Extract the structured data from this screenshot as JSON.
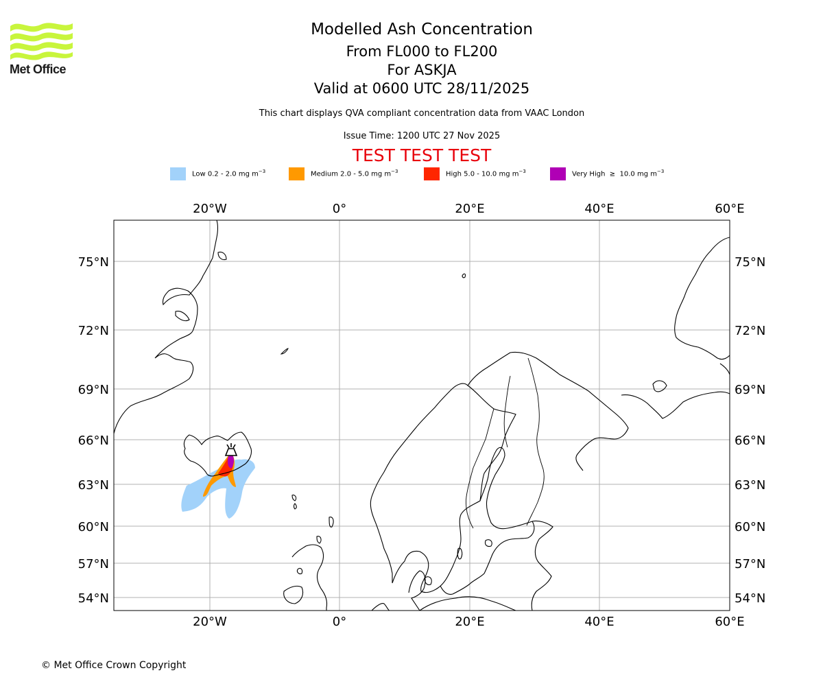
{
  "logo": {
    "text": "Met Office",
    "color": "#c8f53c"
  },
  "title": {
    "main": "Modelled Ash Concentration",
    "levels": "From FL000 to FL200",
    "volcano": "For ASKJA",
    "valid": "Valid at 0600 UTC 28/11/2025",
    "note": "This chart displays QVA compliant concentration data from VAAC London",
    "issue": "Issue Time: 1200 UTC 27 Nov 2025",
    "test": "TEST TEST TEST",
    "test_color": "#e8000b"
  },
  "legend": [
    {
      "label": "Low 0.2 - 2.0 mg m",
      "color": "#a2d2fa"
    },
    {
      "label": "Medium 2.0 - 5.0 mg m",
      "color": "#ff9900"
    },
    {
      "label": "High 5.0 - 10.0 mg m",
      "color": "#ff2600"
    },
    {
      "label": "Very High  ≥  10.0 mg m",
      "color": "#b000b5"
    }
  ],
  "legend_unit_exp": "−3",
  "map": {
    "lon_labels": [
      "20°W",
      "0°",
      "20°E",
      "40°E",
      "60°E"
    ],
    "lat_labels": [
      "75°N",
      "72°N",
      "69°N",
      "66°N",
      "63°N",
      "60°N",
      "57°N",
      "54°N"
    ],
    "grid_color": "#b0b0b0",
    "volcano_marker": "volcano-icon"
  },
  "copyright": "© Met Office Crown Copyright"
}
